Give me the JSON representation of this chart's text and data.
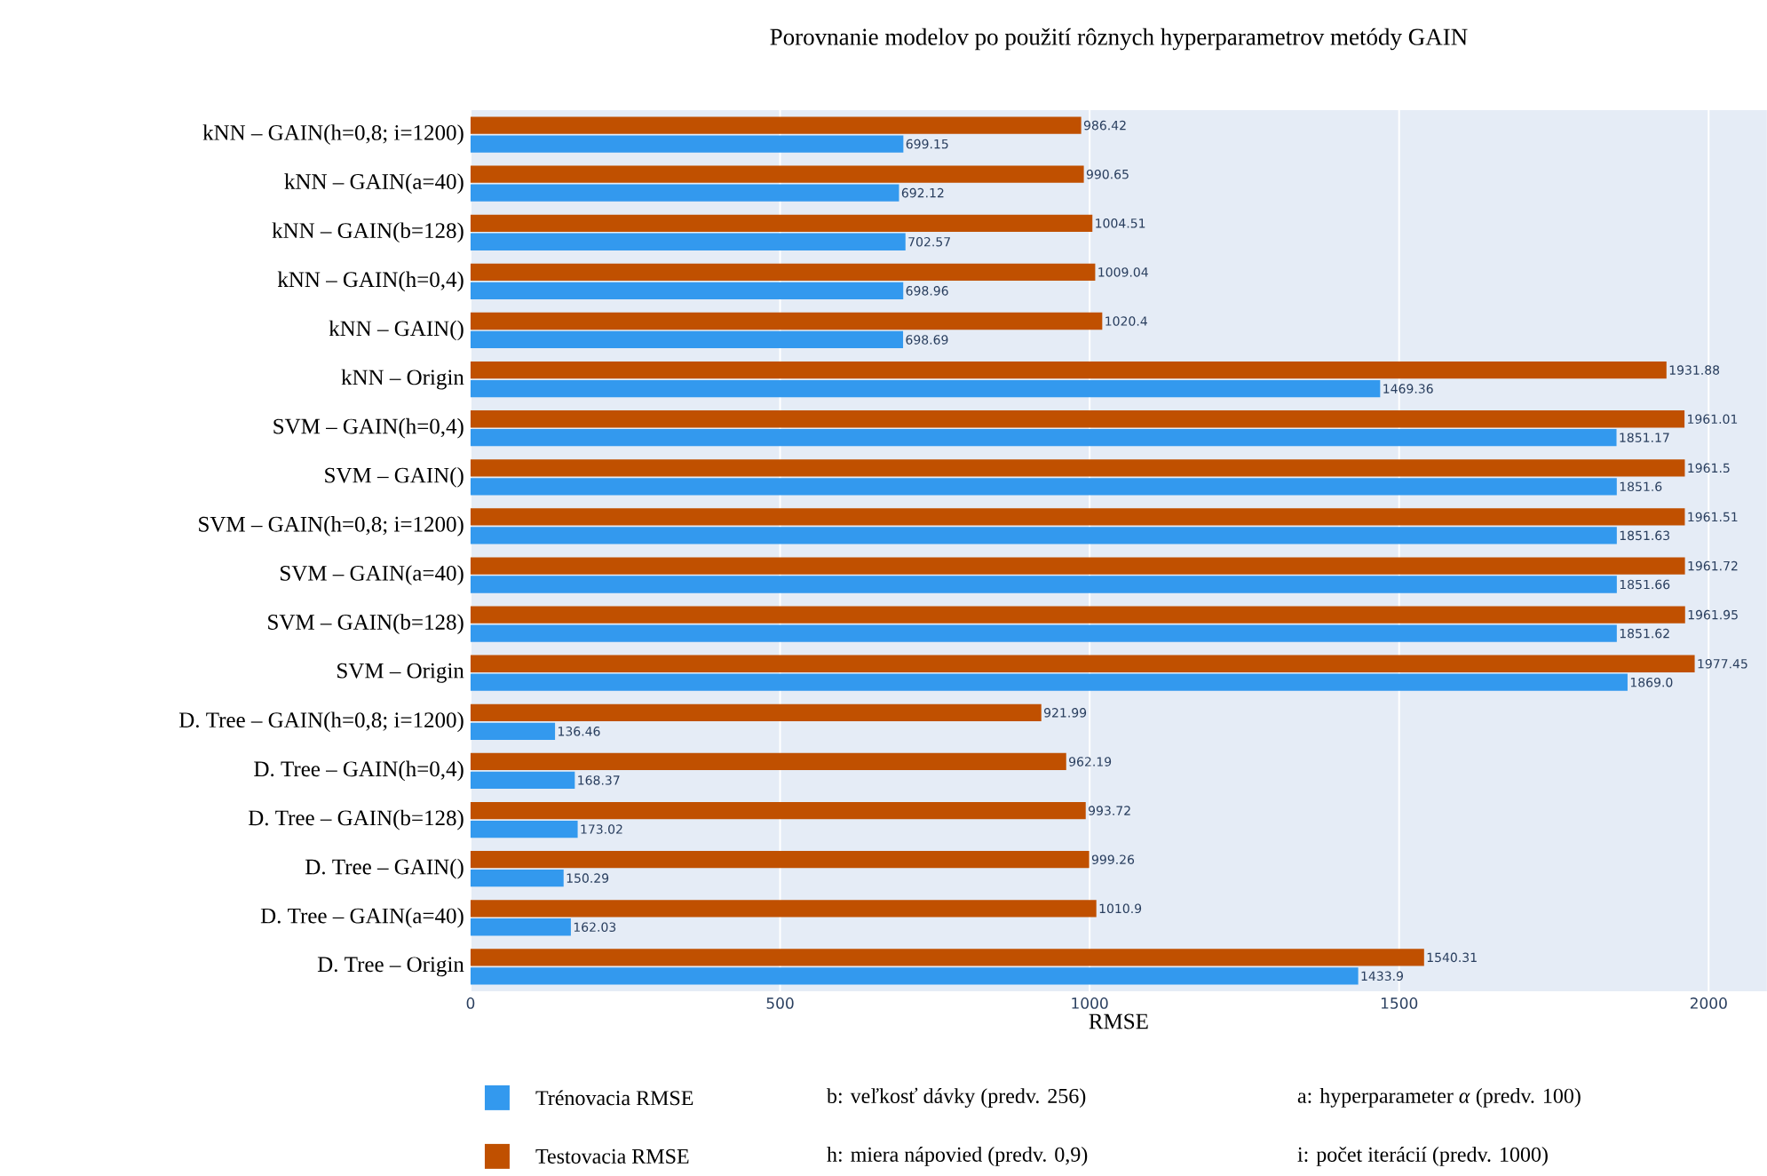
{
  "chart_data": {
    "type": "bar",
    "orientation": "horizontal",
    "title": "Porovnanie modelov po použití rôznych hyperparametrov metódy GAIN",
    "xlabel": "RMSE",
    "categories": [
      "kNN – GAIN(h=0,8; i=1200)",
      "kNN – GAIN(a=40)",
      "kNN – GAIN(b=128)",
      "kNN – GAIN(h=0,4)",
      "kNN – GAIN()",
      "kNN – Origin",
      "SVM – GAIN(h=0,4)",
      "SVM – GAIN()",
      "SVM – GAIN(h=0,8; i=1200)",
      "SVM – GAIN(a=40)",
      "SVM – GAIN(b=128)",
      "SVM – Origin",
      "D. Tree – GAIN(h=0,8; i=1200)",
      "D. Tree – GAIN(h=0,4)",
      "D. Tree – GAIN(b=128)",
      "D. Tree – GAIN()",
      "D. Tree – GAIN(a=40)",
      "D. Tree – Origin"
    ],
    "series": [
      {
        "name": "Trénovacia RMSE",
        "color": "#3399ee",
        "values": [
          699.15,
          692.12,
          702.57,
          698.96,
          698.69,
          1469.36,
          1851.17,
          1851.6,
          1851.63,
          1851.66,
          1851.62,
          1869.0,
          136.46,
          168.37,
          173.02,
          150.29,
          162.03,
          1433.9
        ],
        "value_labels": [
          "699.15",
          "692.12",
          "702.57",
          "698.96",
          "698.69",
          "1469.36",
          "1851.17",
          "1851.6",
          "1851.63",
          "1851.66",
          "1851.62",
          "1869.0",
          "136.46",
          "168.37",
          "173.02",
          "150.29",
          "162.03",
          "1433.9"
        ]
      },
      {
        "name": "Testovacia RMSE",
        "color": "#c05000",
        "values": [
          986.42,
          990.65,
          1004.51,
          1009.04,
          1020.4,
          1931.88,
          1961.01,
          1961.5,
          1961.51,
          1961.72,
          1961.95,
          1977.45,
          921.99,
          962.19,
          993.72,
          999.26,
          1010.9,
          1540.31
        ],
        "value_labels": [
          "986.42",
          "990.65",
          "1004.51",
          "1009.04",
          "1020.4",
          "1931.88",
          "1961.01",
          "1961.5",
          "1961.51",
          "1961.72",
          "1961.95",
          "1977.45",
          "921.99",
          "962.19",
          "993.72",
          "999.26",
          "1010.9",
          "1540.31"
        ]
      }
    ],
    "xlim": [
      0,
      2094
    ],
    "xticks": [
      0,
      500,
      1000,
      1500,
      2000
    ],
    "grid": "x",
    "legend": "bottom",
    "annotations": [
      "b: veľkosť dávky (predv. 256)",
      "h: miera nápovied (predv. 0,9)",
      "a: hyperparameter *α* (predv. 100)",
      "i: počet iterácií (predv. 1000)"
    ]
  }
}
